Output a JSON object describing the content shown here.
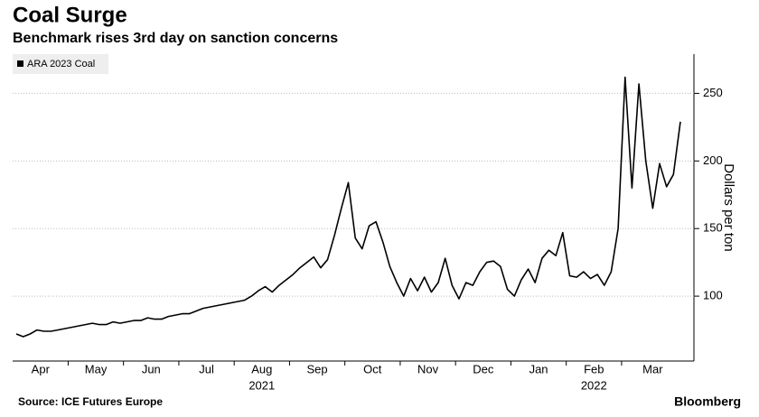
{
  "chart_data": {
    "type": "line",
    "title": "Coal Surge",
    "subtitle": "Benchmark rises 3rd day on sanction concerns",
    "source": "Source: ICE Futures Europe",
    "brand": "Bloomberg",
    "y_axis_label": "Dollars per ton",
    "x": [
      "Apr",
      "Apr",
      "Apr",
      "Apr",
      "Apr",
      "Apr",
      "Apr",
      "Apr",
      "May",
      "May",
      "May",
      "May",
      "May",
      "May",
      "May",
      "May",
      "Jun",
      "Jun",
      "Jun",
      "Jun",
      "Jun",
      "Jun",
      "Jun",
      "Jun",
      "Jul",
      "Jul",
      "Jul",
      "Jul",
      "Jul",
      "Jul",
      "Jul",
      "Jul",
      "Aug",
      "Aug",
      "Aug",
      "Aug",
      "Aug",
      "Aug",
      "Aug",
      "Aug",
      "Sep",
      "Sep",
      "Sep",
      "Sep",
      "Sep",
      "Sep",
      "Sep",
      "Sep",
      "Oct",
      "Oct",
      "Oct",
      "Oct",
      "Oct",
      "Oct",
      "Oct",
      "Oct",
      "Nov",
      "Nov",
      "Nov",
      "Nov",
      "Nov",
      "Nov",
      "Nov",
      "Nov",
      "Dec",
      "Dec",
      "Dec",
      "Dec",
      "Dec",
      "Dec",
      "Dec",
      "Dec",
      "Jan",
      "Jan",
      "Jan",
      "Jan",
      "Jan",
      "Jan",
      "Jan",
      "Jan",
      "Feb",
      "Feb",
      "Feb",
      "Feb",
      "Feb",
      "Feb",
      "Feb",
      "Feb",
      "Mar",
      "Mar",
      "Mar",
      "Mar",
      "Mar",
      "Mar",
      "Mar",
      "Mar",
      "Mar"
    ],
    "years": [
      {
        "label": "2021",
        "month": "Aug"
      },
      {
        "label": "2022",
        "month": "Feb"
      }
    ],
    "series": [
      {
        "name": "ARA 2023 Coal",
        "color": "#000000",
        "values": [
          72,
          70,
          72,
          75,
          74,
          74,
          75,
          76,
          77,
          78,
          79,
          80,
          79,
          79,
          81,
          80,
          81,
          82,
          82,
          84,
          83,
          83,
          85,
          86,
          87,
          87,
          89,
          91,
          92,
          93,
          94,
          95,
          96,
          97,
          100,
          104,
          107,
          103,
          108,
          112,
          116,
          121,
          125,
          129,
          121,
          127,
          145,
          165,
          184,
          143,
          135,
          152,
          155,
          140,
          122,
          110,
          100,
          113,
          104,
          114,
          103,
          110,
          128,
          108,
          98,
          110,
          108,
          118,
          125,
          126,
          122,
          105,
          100,
          112,
          120,
          110,
          128,
          134,
          130,
          147,
          115,
          114,
          118,
          113,
          116,
          108,
          118,
          150,
          262,
          180,
          257,
          200,
          165,
          198,
          181,
          190,
          229
        ]
      }
    ],
    "ylim": [
      52,
      279
    ],
    "yticks": [
      100,
      150,
      200,
      250
    ],
    "grid": true,
    "legend": "top-left"
  }
}
